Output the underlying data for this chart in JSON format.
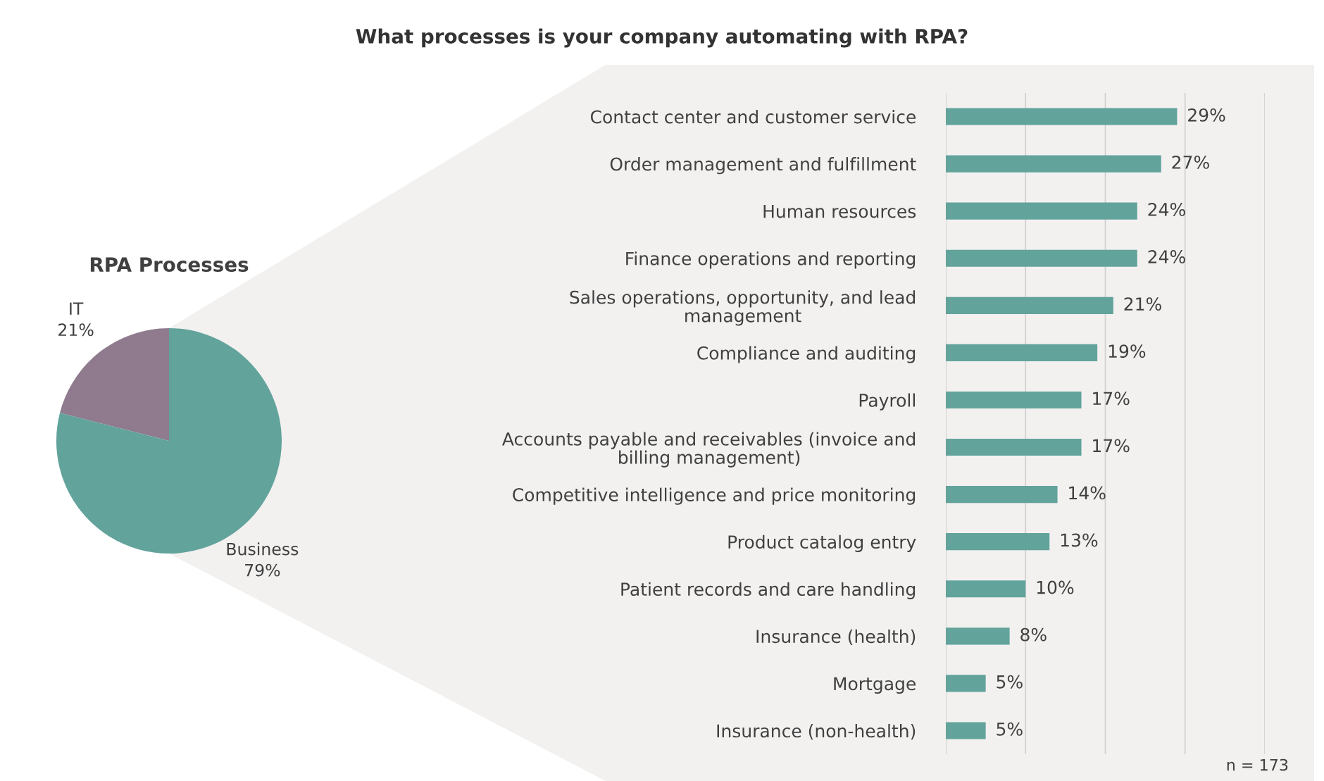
{
  "chart_data": [
    {
      "type": "pie",
      "title": "RPA Processes",
      "categories": [
        "IT",
        "Business"
      ],
      "values": [
        21,
        79
      ],
      "colors": [
        "#8f7a8e",
        "#62a39b"
      ],
      "value_labels": [
        "21%",
        "79%"
      ]
    },
    {
      "type": "bar",
      "orientation": "horizontal",
      "title": "What processes is your company automating with RPA?",
      "categories": [
        "Contact center and customer service",
        "Order management and fulfillment",
        "Human resources",
        "Finance operations and reporting",
        "Sales operations, opportunity, and lead\nmanagement",
        "Compliance and auditing",
        "Payroll",
        "Accounts payable and receivables (invoice and\nbilling management)",
        "Competitive intelligence and price monitoring",
        "Product catalog entry",
        "Patient records and care handling",
        "Insurance (health)",
        "Mortgage",
        "Insurance (non-health)"
      ],
      "values": [
        29,
        27,
        24,
        24,
        21,
        19,
        17,
        17,
        14,
        13,
        10,
        8,
        5,
        5
      ],
      "value_labels": [
        "29%",
        "27%",
        "24%",
        "24%",
        "21%",
        "19%",
        "17%",
        "17%",
        "14%",
        "13%",
        "10%",
        "8%",
        "5%",
        "5%"
      ],
      "color": "#62a39b",
      "xlim": [
        0,
        40
      ],
      "xticks": [
        0,
        10,
        20,
        30,
        40
      ],
      "grid": "x",
      "tick_labels": "y",
      "annotations": [
        "n = 173"
      ]
    }
  ]
}
